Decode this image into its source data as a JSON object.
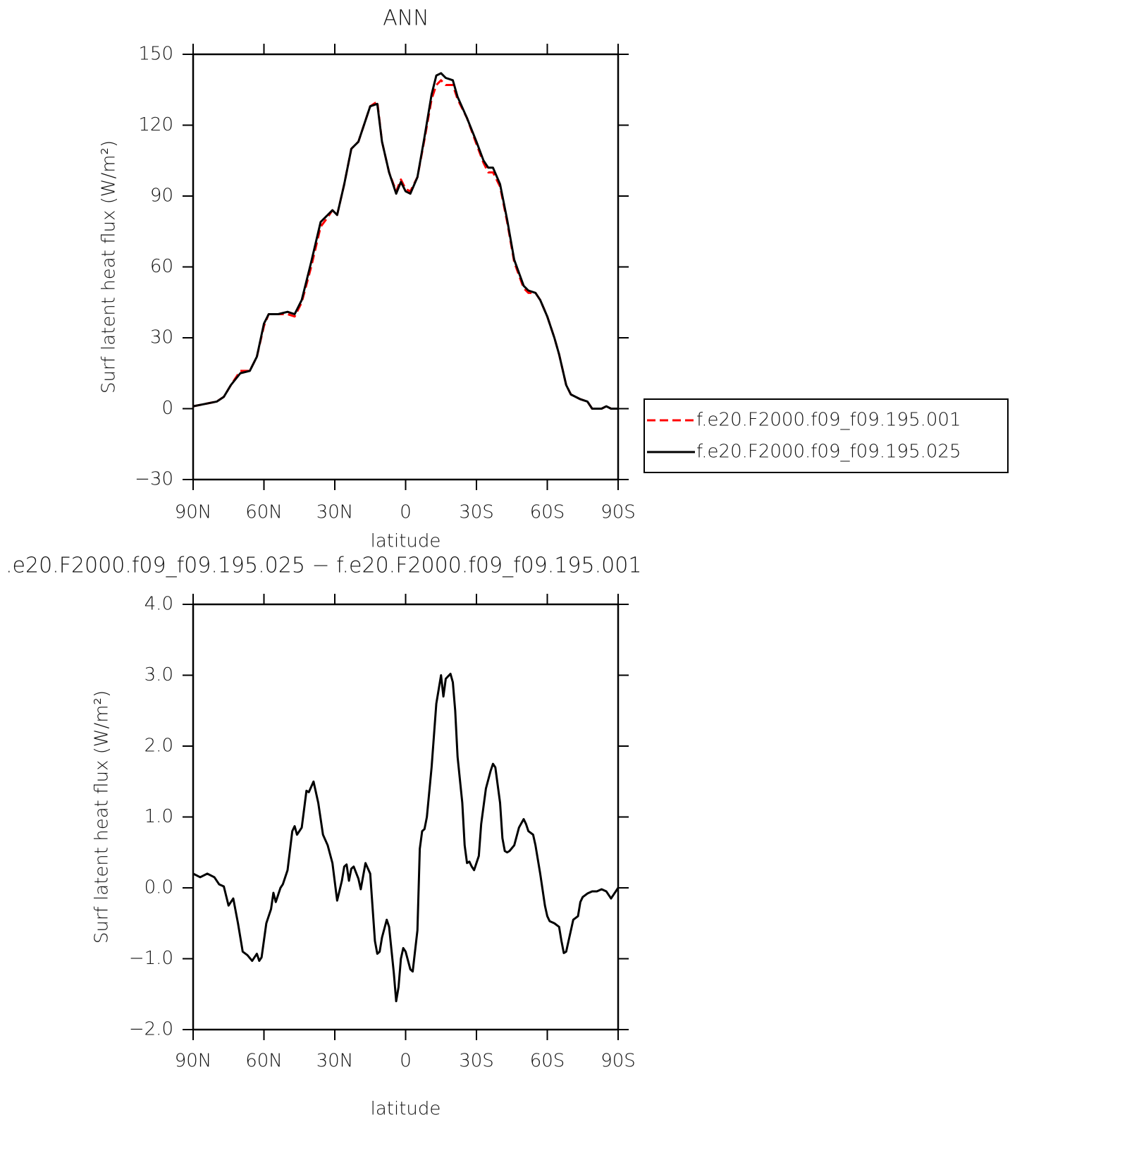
{
  "chart_data": [
    {
      "type": "line",
      "title": "ANN",
      "x_label": "latitude",
      "y_label": "Surf latent heat flux (W/m²)",
      "xlim": [
        90,
        -90
      ],
      "xticks": [
        {
          "value": 90,
          "label": "90N"
        },
        {
          "value": 60,
          "label": "60N"
        },
        {
          "value": 30,
          "label": "30N"
        },
        0,
        {
          "value": -30,
          "label": "30S"
        },
        {
          "value": -60,
          "label": "60S"
        },
        {
          "value": -90,
          "label": "90S"
        }
      ],
      "ylim": [
        -30,
        150
      ],
      "yticks": [
        {
          "value": -30,
          "label": "−30"
        },
        0,
        30,
        60,
        90,
        120,
        150
      ],
      "legend": "outside-right",
      "x": [
        90,
        85,
        80,
        77,
        74,
        70,
        66,
        63,
        60,
        58,
        54,
        50,
        47,
        44,
        40,
        36,
        33,
        31,
        29,
        26,
        23,
        20,
        18,
        15,
        12,
        10,
        7,
        4,
        2,
        0,
        -2,
        -5,
        -8,
        -11,
        -13,
        -15,
        -17,
        -20,
        -22,
        -26,
        -30,
        -33,
        -35,
        -37,
        -40,
        -43,
        -46,
        -50,
        -52,
        -55,
        -57,
        -60,
        -63,
        -65,
        -68,
        -70,
        -74,
        -77,
        -79,
        -83,
        -85,
        -87,
        -90
      ],
      "series": [
        {
          "name": "f.e20.F2000.f09_f09.195.001",
          "color": "#ff0000",
          "dashed": true,
          "values": [
            1,
            2,
            3,
            5,
            10,
            16,
            16,
            22,
            35,
            40,
            40,
            40,
            39,
            45,
            60,
            77,
            81,
            84,
            82,
            95,
            110,
            113,
            119,
            128,
            130,
            113,
            100,
            92,
            97,
            93,
            92,
            98,
            114,
            131,
            137,
            139,
            137,
            137,
            131,
            123,
            112,
            104,
            100,
            100,
            94,
            79,
            62,
            51,
            49,
            49,
            46,
            39,
            30,
            23,
            10,
            6,
            4,
            3,
            0,
            0,
            1,
            0,
            0
          ]
        },
        {
          "name": "f.e20.F2000.f09_f09.195.025",
          "color": "#000000",
          "dashed": false,
          "values": [
            1,
            2,
            3,
            5,
            10,
            15,
            16,
            22,
            36,
            40,
            40,
            41,
            40,
            46,
            62,
            79,
            82,
            84,
            82,
            95,
            110,
            113,
            119,
            128,
            129,
            113,
            100,
            91,
            96,
            92,
            91,
            98,
            115,
            133,
            141,
            142,
            140,
            139,
            132,
            123,
            113,
            105,
            102,
            102,
            95,
            80,
            63,
            52,
            50,
            49,
            46,
            39,
            30,
            23,
            10,
            6,
            4,
            3,
            0,
            0,
            1,
            0,
            0
          ]
        }
      ]
    },
    {
      "type": "line",
      "title": ".e20.F2000.f09_f09.195.025 − f.e20.F2000.f09_f09.195.001",
      "x_label": "latitude",
      "y_label": "Surf latent heat flux (W/m²)",
      "xlim": [
        90,
        -90
      ],
      "xticks": [
        {
          "value": 90,
          "label": "90N"
        },
        {
          "value": 60,
          "label": "60N"
        },
        {
          "value": 30,
          "label": "30N"
        },
        0,
        {
          "value": -30,
          "label": "30S"
        },
        {
          "value": -60,
          "label": "60S"
        },
        {
          "value": -90,
          "label": "90S"
        }
      ],
      "ylim": [
        -2,
        4
      ],
      "yticks": [
        {
          "value": -2,
          "label": "−2.0"
        },
        {
          "value": -1,
          "label": "−1.0"
        },
        {
          "value": 0,
          "label": "0.0"
        },
        {
          "value": 1,
          "label": "1.0"
        },
        {
          "value": 2,
          "label": "2.0"
        },
        {
          "value": 3,
          "label": "3.0"
        },
        {
          "value": 4,
          "label": "4.0"
        }
      ],
      "color": "#000000",
      "x": [
        90,
        87,
        84,
        81,
        79,
        77,
        75,
        73,
        71,
        69,
        67,
        65,
        63,
        62,
        61,
        59,
        57,
        56,
        55,
        53,
        52,
        50,
        48,
        47,
        46,
        44,
        42,
        41,
        39,
        37,
        35,
        33,
        31,
        29,
        27,
        26,
        25,
        24,
        23,
        22,
        20,
        19,
        17,
        15,
        13,
        12,
        11,
        10,
        8,
        7,
        5,
        4,
        3,
        2,
        1,
        0,
        -2,
        -3,
        -5,
        -6,
        -7,
        -8,
        -9,
        -11,
        -13,
        -15,
        -16,
        -17,
        -19,
        -20,
        -21,
        -22,
        -24,
        -25,
        -26,
        -27,
        -28,
        -29,
        -31,
        -32,
        -34,
        -36,
        -37,
        -38,
        -40,
        -41,
        -42,
        -43,
        -44,
        -46,
        -48,
        -50,
        -51,
        -52,
        -54,
        -55,
        -57,
        -59,
        -60,
        -61,
        -63,
        -65,
        -66,
        -67,
        -68,
        -70,
        -71,
        -73,
        -74,
        -75,
        -77,
        -79,
        -81,
        -83,
        -85,
        -86,
        -87,
        -88,
        -89,
        -90
      ],
      "values": [
        0.2,
        0.15,
        0.2,
        0.15,
        0.05,
        0.02,
        -0.25,
        -0.15,
        -0.5,
        -0.9,
        -0.95,
        -1.03,
        -0.93,
        -1.03,
        -0.98,
        -0.5,
        -0.3,
        -0.07,
        -0.2,
        0.0,
        0.05,
        0.25,
        0.8,
        0.87,
        0.75,
        0.85,
        1.37,
        1.35,
        1.5,
        1.2,
        0.75,
        0.6,
        0.35,
        -0.18,
        0.1,
        0.3,
        0.33,
        0.1,
        0.27,
        0.3,
        0.13,
        -0.02,
        0.35,
        0.2,
        -0.75,
        -0.93,
        -0.9,
        -0.7,
        -0.45,
        -0.55,
        -1.2,
        -1.6,
        -1.4,
        -1.0,
        -0.85,
        -0.9,
        -1.15,
        -1.18,
        -0.6,
        0.55,
        0.8,
        0.83,
        1.0,
        1.7,
        2.6,
        3.0,
        2.7,
        2.95,
        3.02,
        2.9,
        2.5,
        1.85,
        1.2,
        0.6,
        0.35,
        0.37,
        0.3,
        0.25,
        0.45,
        0.9,
        1.4,
        1.65,
        1.75,
        1.7,
        1.2,
        0.7,
        0.52,
        0.5,
        0.52,
        0.6,
        0.85,
        0.97,
        0.9,
        0.8,
        0.75,
        0.6,
        0.2,
        -0.25,
        -0.4,
        -0.47,
        -0.5,
        -0.55,
        -0.75,
        -0.92,
        -0.9,
        -0.6,
        -0.45,
        -0.4,
        -0.2,
        -0.13,
        -0.08,
        -0.05,
        -0.05,
        -0.02,
        -0.05,
        -0.1,
        -0.15,
        -0.1,
        -0.05,
        0.0
      ]
    }
  ]
}
